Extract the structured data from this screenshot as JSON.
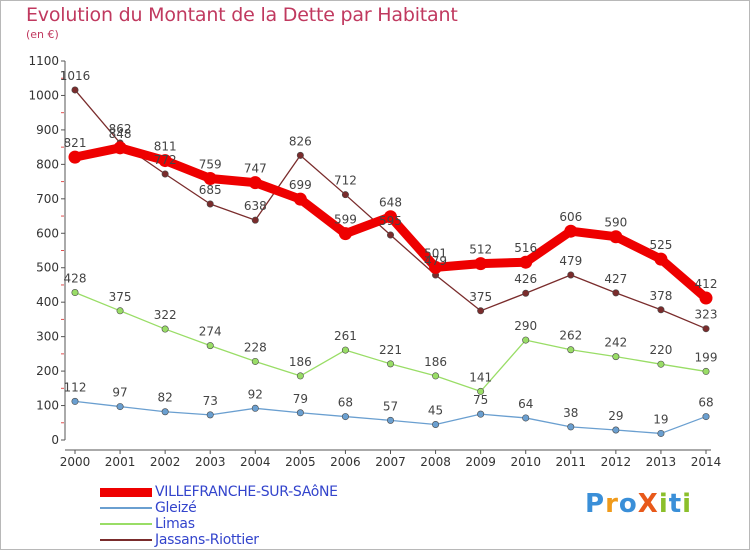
{
  "title": "Evolution du Montant de la Dette par Habitant",
  "unit": "(en €)",
  "logo": {
    "text": "ProXiti",
    "letters": [
      {
        "ch": "P",
        "color": "#3a8fd8"
      },
      {
        "ch": "r",
        "color": "#f09a1a"
      },
      {
        "ch": "o",
        "color": "#3a8fd8"
      },
      {
        "ch": "X",
        "color": "#e8591a"
      },
      {
        "ch": "i",
        "color": "#8bbf2b"
      },
      {
        "ch": "t",
        "color": "#3a8fd8"
      },
      {
        "ch": "i",
        "color": "#8bbf2b"
      }
    ]
  },
  "chart_data": {
    "type": "line",
    "x": [
      "2000",
      "2001",
      "2002",
      "2003",
      "2004",
      "2005",
      "2006",
      "2007",
      "2008",
      "2009",
      "2010",
      "2011",
      "2012",
      "2013",
      "2014"
    ],
    "ylim": [
      0,
      1100
    ],
    "yticks": [
      0,
      100,
      200,
      300,
      400,
      500,
      600,
      700,
      800,
      900,
      1000,
      1100
    ],
    "grid": false,
    "legend_position": "bottom-left",
    "series": [
      {
        "name": "VILLEFRANCHE-SUR-SAôNE",
        "color": "#ee0000",
        "emphasis": true,
        "values": [
          821,
          848,
          811,
          759,
          747,
          699,
          599,
          648,
          501,
          512,
          516,
          606,
          590,
          525,
          412
        ]
      },
      {
        "name": "Gleizé",
        "color": "#6a9fd0",
        "emphasis": false,
        "values": [
          112,
          97,
          82,
          73,
          92,
          79,
          68,
          57,
          45,
          75,
          64,
          38,
          29,
          19,
          68
        ]
      },
      {
        "name": "Limas",
        "color": "#99dd66",
        "emphasis": false,
        "values": [
          428,
          375,
          322,
          274,
          228,
          186,
          261,
          221,
          186,
          141,
          290,
          262,
          242,
          220,
          199
        ]
      },
      {
        "name": "Jassans-Riottier",
        "color": "#7a2c2c",
        "emphasis": false,
        "values": [
          1016,
          862,
          772,
          685,
          638,
          826,
          712,
          595,
          479,
          375,
          426,
          479,
          427,
          378,
          323
        ]
      }
    ]
  }
}
